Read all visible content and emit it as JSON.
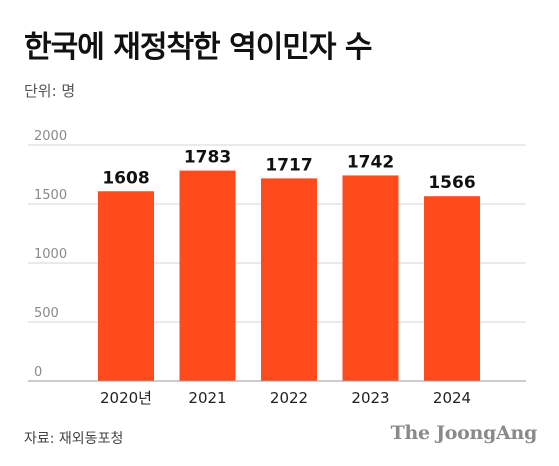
{
  "header": {
    "title": "한국에 재정착한 역이민자 수",
    "unit": "단위: 명"
  },
  "footer": {
    "source": "자료: 재외동포청",
    "brand": "The JoongAng"
  },
  "colors": {
    "bar": "#ff4a1c",
    "grid": "#d6d6d6",
    "tick": "#8a8a8a",
    "label": "#111111"
  },
  "chart_data": {
    "type": "bar",
    "categories": [
      "2020년",
      "2021",
      "2022",
      "2023",
      "2024"
    ],
    "values": [
      1608,
      1783,
      1717,
      1742,
      1566
    ],
    "data_labels": [
      "1608",
      "1783",
      "1717",
      "1742",
      "1566"
    ],
    "yticks": [
      0,
      500,
      1000,
      1500,
      2000
    ],
    "ylim": [
      0,
      2000
    ],
    "grid": true,
    "legend": "none",
    "title": "한국에 재정착한 역이민자 수",
    "xlabel": "",
    "ylabel": "단위: 명"
  }
}
